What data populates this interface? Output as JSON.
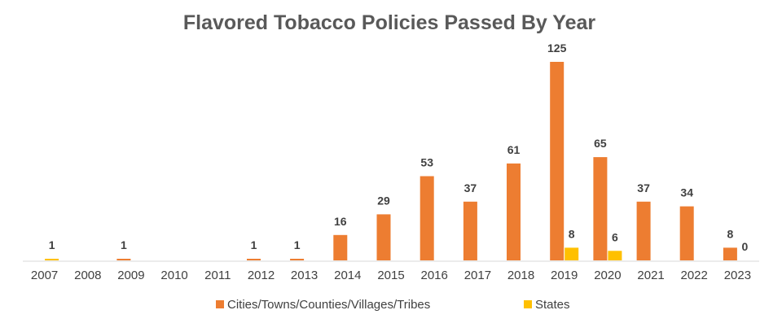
{
  "chart_data": {
    "type": "bar",
    "title": "Flavored Tobacco Policies Passed By Year",
    "categories": [
      "2007",
      "2008",
      "2009",
      "2010",
      "2011",
      "2012",
      "2013",
      "2014",
      "2015",
      "2016",
      "2017",
      "2018",
      "2019",
      "2020",
      "2021",
      "2022",
      "2023"
    ],
    "series": [
      {
        "name": "Cities/Towns/Counties/Villages/Tribes",
        "color": "#ED7D31",
        "values": [
          0,
          0,
          1,
          0,
          0,
          1,
          1,
          16,
          29,
          53,
          37,
          61,
          125,
          65,
          37,
          34,
          8
        ],
        "labels": [
          "",
          "",
          "1",
          "",
          "",
          "1",
          "1",
          "16",
          "29",
          "53",
          "37",
          "61",
          "125",
          "65",
          "37",
          "34",
          "8"
        ]
      },
      {
        "name": "States",
        "color": "#FFC000",
        "values": [
          1,
          0,
          0,
          0,
          0,
          0,
          0,
          0,
          0,
          0,
          0,
          0,
          8,
          6,
          0,
          0,
          0
        ],
        "labels": [
          "1",
          "",
          "",
          "",
          "",
          "",
          "",
          "",
          "",
          "",
          "",
          "",
          "8",
          "6",
          "",
          "",
          "0"
        ]
      }
    ],
    "ylim": [
      0,
      130
    ],
    "grid": false,
    "legend_position": "bottom"
  }
}
